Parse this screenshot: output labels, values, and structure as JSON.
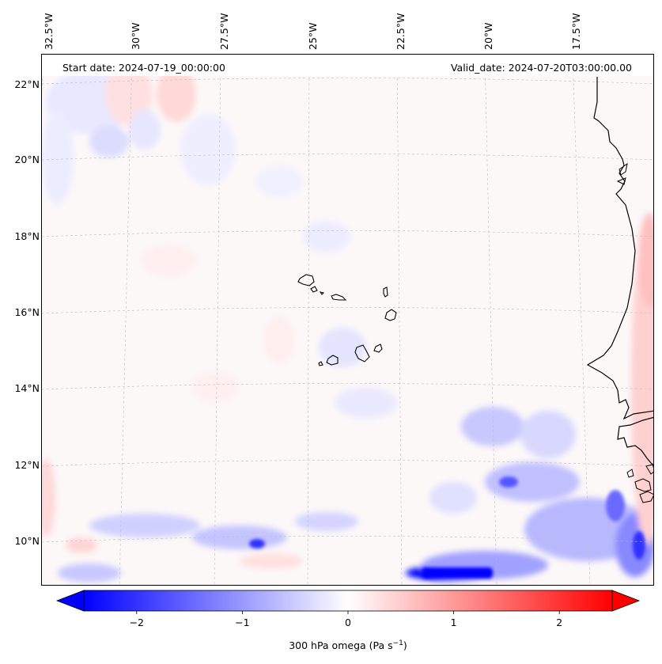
{
  "header": {
    "start_date": "Start date: 2024-07-19_00:00:00",
    "valid_date": "Valid_date: 2024-07-20T03:00:00.00"
  },
  "map": {
    "lon_labels": [
      "32.5°W",
      "30°W",
      "27.5°W",
      "25°W",
      "22.5°W",
      "20°W",
      "17.5°W"
    ],
    "lat_labels": [
      "22°N",
      "20°N",
      "18°N",
      "16°N",
      "14°N",
      "12°N",
      "10°N"
    ],
    "field": "300 hPa omega",
    "colors": {
      "negative": "#0000ff",
      "zero": "#ffffff",
      "positive": "#ff0000",
      "coastline": "#000000",
      "gridline": "#bbbbbb"
    }
  },
  "colorbar": {
    "ticks": [
      "−2",
      "−1",
      "0",
      "1",
      "2"
    ],
    "tick_values": [
      -2,
      -1,
      0,
      1,
      2
    ],
    "range": [
      -2.5,
      2.5
    ],
    "label_text": "300 hPa omega (Pa s",
    "label_sup": "−1",
    "label_close": ")"
  }
}
